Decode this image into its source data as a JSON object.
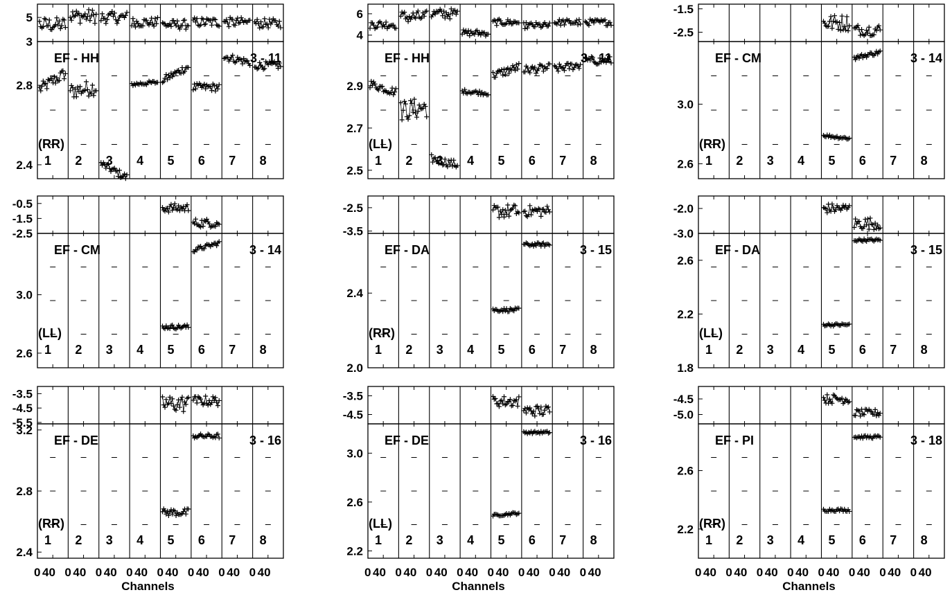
{
  "chart_data": {
    "type": "scatter",
    "xlabel": "Channels",
    "channel_ticks": [
      "0",
      "40"
    ],
    "bands": 8,
    "band_channels": [
      0,
      63
    ],
    "panels": [
      {
        "title": "EF - HH",
        "pol": "(RR)",
        "id": "3 - 11",
        "phase": {
          "ylim": [
            3,
            6.1
          ],
          "yticks": [
            "3",
            "5"
          ]
        },
        "amp": {
          "ylim": [
            2.33,
            3.02
          ],
          "yticks": [
            "2.4",
            "2.8"
          ]
        },
        "channels": [
          "1",
          "2",
          "3",
          "4",
          "5",
          "6",
          "7",
          "8"
        ],
        "amp_level": [
          2.82,
          2.78,
          2.37,
          2.81,
          2.86,
          2.79,
          2.93,
          2.9
        ],
        "amp_slope": [
          0.08,
          0.02,
          -0.07,
          0.01,
          0.07,
          0.0,
          -0.03,
          0.0
        ],
        "amp_scatter": [
          0.03,
          0.04,
          0.02,
          0.01,
          0.02,
          0.02,
          0.02,
          0.02
        ],
        "phase_level": [
          4.4,
          5.1,
          5.0,
          4.6,
          4.4,
          4.6,
          4.6,
          4.5
        ],
        "phase_scatter": [
          0.6,
          0.6,
          0.5,
          0.4,
          0.4,
          0.4,
          0.4,
          0.4
        ]
      },
      {
        "title": "EF - HH",
        "pol": "(LL)",
        "id": "3 - 11",
        "phase": {
          "ylim": [
            3.4,
            6.9
          ],
          "yticks": [
            "4",
            "6"
          ]
        },
        "amp": {
          "ylim": [
            2.46,
            3.11
          ],
          "yticks": [
            "2.5",
            "2.7",
            "2.9"
          ]
        },
        "channels": [
          "1",
          "2",
          "3",
          "4",
          "5",
          "6",
          "7",
          "8"
        ],
        "amp_level": [
          2.89,
          2.79,
          2.54,
          2.87,
          2.97,
          2.98,
          2.99,
          3.02
        ],
        "amp_slope": [
          -0.04,
          0.02,
          -0.03,
          -0.01,
          0.04,
          0.01,
          0.02,
          0.0
        ],
        "amp_scatter": [
          0.02,
          0.05,
          0.02,
          0.01,
          0.02,
          0.02,
          0.02,
          0.02
        ],
        "phase_level": [
          5.0,
          5.7,
          6.0,
          4.2,
          5.2,
          4.9,
          5.2,
          5.2
        ],
        "phase_scatter": [
          0.4,
          0.6,
          0.5,
          0.3,
          0.3,
          0.3,
          0.3,
          0.3
        ]
      },
      {
        "title": "EF - CM",
        "pol": "(RR)",
        "id": "3 - 14",
        "phase": {
          "ylim": [
            -2.9,
            -1.3
          ],
          "yticks": [
            "-1.5",
            "-2.5"
          ]
        },
        "amp": {
          "ylim": [
            2.5,
            3.42
          ],
          "yticks": [
            "2.6",
            "3.0"
          ]
        },
        "channels": [
          "1",
          "2",
          "3",
          "4",
          "5",
          "6",
          "7",
          "8"
        ],
        "amp_level": [
          null,
          null,
          null,
          null,
          2.78,
          3.33,
          null,
          null
        ],
        "amp_slope": [
          0,
          0,
          0,
          0,
          -0.02,
          0.04,
          0,
          0
        ],
        "amp_scatter": [
          0,
          0,
          0,
          0,
          0.01,
          0.015,
          0,
          0
        ],
        "phase_level": [
          null,
          null,
          null,
          null,
          -2.1,
          -2.4,
          null,
          null
        ],
        "phase_scatter": [
          0,
          0,
          0,
          0,
          0.35,
          0.25,
          0,
          0
        ]
      },
      {
        "title": "EF - CM",
        "pol": "(LL)",
        "id": "3 - 14",
        "phase": {
          "ylim": [
            -2.5,
            0.0
          ],
          "yticks": [
            "-0.5",
            "-1.5",
            "-2.5"
          ]
        },
        "amp": {
          "ylim": [
            2.5,
            3.42
          ],
          "yticks": [
            "2.6",
            "3.0"
          ]
        },
        "channels": [
          "1",
          "2",
          "3",
          "4",
          "5",
          "6",
          "7",
          "8"
        ],
        "amp_level": [
          null,
          null,
          null,
          null,
          2.78,
          3.33,
          null,
          null
        ],
        "amp_slope": [
          0,
          0,
          0,
          0,
          0.0,
          0.05,
          0,
          0
        ],
        "amp_scatter": [
          0,
          0,
          0,
          0,
          0.015,
          0.015,
          0,
          0
        ],
        "phase_level": [
          null,
          null,
          null,
          null,
          -0.8,
          -1.8,
          null,
          null
        ],
        "phase_scatter": [
          0,
          0,
          0,
          0,
          0.3,
          0.3,
          0,
          0
        ]
      },
      {
        "title": "EF - DA",
        "pol": "(RR)",
        "id": "3 - 15",
        "phase": {
          "ylim": [
            -3.6,
            -2.0
          ],
          "yticks": [
            "-2.5",
            "-3.5"
          ]
        },
        "amp": {
          "ylim": [
            2.0,
            2.72
          ],
          "yticks": [
            "2.0",
            "2.4"
          ]
        },
        "channels": [
          "1",
          "2",
          "3",
          "4",
          "5",
          "6",
          "7",
          "8"
        ],
        "amp_level": [
          null,
          null,
          null,
          null,
          2.31,
          2.66,
          null,
          null
        ],
        "amp_slope": [
          0,
          0,
          0,
          0,
          0.0,
          0.0,
          0,
          0
        ],
        "amp_scatter": [
          0,
          0,
          0,
          0,
          0.01,
          0.01,
          0,
          0
        ],
        "phase_level": [
          null,
          null,
          null,
          null,
          -2.65,
          -2.65,
          null,
          null
        ],
        "phase_scatter": [
          0,
          0,
          0,
          0,
          0.3,
          0.25,
          0,
          0
        ]
      },
      {
        "title": "EF - DA",
        "pol": "(LL)",
        "id": "3 - 15",
        "phase": {
          "ylim": [
            -3.0,
            -1.5
          ],
          "yticks": [
            "-2.0",
            "-3.0"
          ]
        },
        "amp": {
          "ylim": [
            1.8,
            2.8
          ],
          "yticks": [
            "1.8",
            "2.2",
            "2.6"
          ]
        },
        "channels": [
          "1",
          "2",
          "3",
          "4",
          "5",
          "6",
          "7",
          "8"
        ],
        "amp_level": [
          null,
          null,
          null,
          null,
          2.12,
          2.75,
          null,
          null
        ],
        "amp_slope": [
          0,
          0,
          0,
          0,
          0.0,
          0.0,
          0,
          0
        ],
        "amp_scatter": [
          0,
          0,
          0,
          0,
          0.01,
          0.01,
          0,
          0
        ],
        "phase_level": [
          null,
          null,
          null,
          null,
          -2.0,
          -2.6,
          null,
          null
        ],
        "phase_scatter": [
          0,
          0,
          0,
          0,
          0.2,
          0.25,
          0,
          0
        ]
      },
      {
        "title": "EF - DE",
        "pol": "(RR)",
        "id": "3 - 16",
        "phase": {
          "ylim": [
            -5.6,
            -3.0
          ],
          "yticks": [
            "-3.5",
            "-4.5",
            "-5.5"
          ]
        },
        "amp": {
          "ylim": [
            2.36,
            3.24
          ],
          "yticks": [
            "2.4",
            "2.8",
            "3.2"
          ]
        },
        "channels": [
          "1",
          "2",
          "3",
          "4",
          "5",
          "6",
          "7",
          "8"
        ],
        "amp_level": [
          null,
          null,
          null,
          null,
          2.66,
          3.16,
          null,
          null
        ],
        "amp_slope": [
          0,
          0,
          0,
          0,
          0.0,
          0.0,
          0,
          0
        ],
        "amp_scatter": [
          0,
          0,
          0,
          0,
          0.025,
          0.015,
          0,
          0
        ],
        "phase_level": [
          null,
          null,
          null,
          null,
          -4.2,
          -4.0,
          null,
          null
        ],
        "phase_scatter": [
          0,
          0,
          0,
          0,
          0.6,
          0.35,
          0,
          0
        ]
      },
      {
        "title": "EF - DE",
        "pol": "(LL)",
        "id": "3 - 16",
        "phase": {
          "ylim": [
            -5.0,
            -3.0
          ],
          "yticks": [
            "-3.5",
            "-4.5"
          ]
        },
        "amp": {
          "ylim": [
            2.14,
            3.24
          ],
          "yticks": [
            "2.2",
            "2.6",
            "3.0"
          ]
        },
        "channels": [
          "1",
          "2",
          "3",
          "4",
          "5",
          "6",
          "7",
          "8"
        ],
        "amp_level": [
          null,
          null,
          null,
          null,
          2.5,
          3.17,
          null,
          null
        ],
        "amp_slope": [
          0,
          0,
          0,
          0,
          0.02,
          0.0,
          0,
          0
        ],
        "amp_scatter": [
          0,
          0,
          0,
          0,
          0.01,
          0.01,
          0,
          0
        ],
        "phase_level": [
          null,
          null,
          null,
          null,
          -3.8,
          -4.3,
          null,
          null
        ],
        "phase_scatter": [
          0,
          0,
          0,
          0,
          0.3,
          0.3,
          0,
          0
        ]
      },
      {
        "title": "EF - PI",
        "pol": "(RR)",
        "id": "3 - 18",
        "phase": {
          "ylim": [
            -5.3,
            -4.1
          ],
          "yticks": [
            "-4.5",
            "-5.0"
          ]
        },
        "amp": {
          "ylim": [
            2.0,
            2.92
          ],
          "yticks": [
            "2.2",
            "2.6"
          ]
        },
        "channels": [
          "1",
          "2",
          "3",
          "4",
          "5",
          "6",
          "7",
          "8"
        ],
        "amp_level": [
          null,
          null,
          null,
          null,
          2.33,
          2.83,
          null,
          null
        ],
        "amp_slope": [
          0,
          0,
          0,
          0,
          0.0,
          0.0,
          0,
          0
        ],
        "amp_scatter": [
          0,
          0,
          0,
          0,
          0.01,
          0.01,
          0,
          0
        ],
        "phase_level": [
          null,
          null,
          null,
          null,
          -4.5,
          -4.95,
          null,
          null
        ],
        "phase_scatter": [
          0,
          0,
          0,
          0,
          0.15,
          0.12,
          0,
          0
        ]
      }
    ]
  }
}
